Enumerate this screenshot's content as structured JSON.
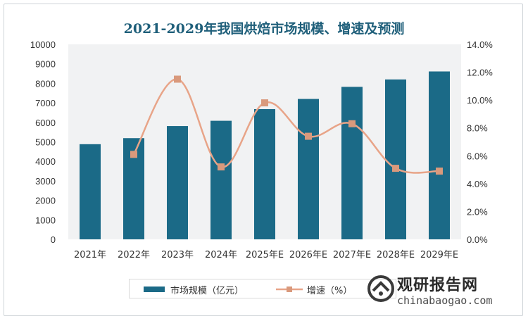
{
  "chart_data": {
    "type": "bar",
    "title": "2021-2029年我国烘焙市场规模、增速及预测",
    "categories": [
      "2021年",
      "2022年",
      "2023年",
      "2024年",
      "2025年E",
      "2026年E",
      "2027年E",
      "2028年E",
      "2029年E"
    ],
    "series": [
      {
        "name": "市场规模（亿元）",
        "type": "bar",
        "axis": "left",
        "color": "#1b6a87",
        "values": [
          4880,
          5190,
          5810,
          6080,
          6680,
          7200,
          7820,
          8200,
          8610
        ]
      },
      {
        "name": "增速（%）",
        "type": "line",
        "axis": "right",
        "color": "#e8a488",
        "marker_color": "#d9997c",
        "values": [
          null,
          6.1,
          11.5,
          5.2,
          9.8,
          7.4,
          8.3,
          5.1,
          4.9
        ]
      }
    ],
    "y_left": {
      "min": 0,
      "max": 10000,
      "step": 1000,
      "ticks": [
        "0",
        "1000",
        "2000",
        "3000",
        "4000",
        "5000",
        "6000",
        "7000",
        "8000",
        "9000",
        "10000"
      ]
    },
    "y_right": {
      "min": 0,
      "max": 14,
      "step": 2,
      "ticks": [
        "0.0%",
        "2.0%",
        "4.0%",
        "6.0%",
        "8.0%",
        "10.0%",
        "12.0%",
        "14.0%"
      ]
    },
    "grid": false,
    "legend": "bottom"
  },
  "brand": {
    "name": "观研报告网",
    "site": "chinabaogao.com"
  }
}
